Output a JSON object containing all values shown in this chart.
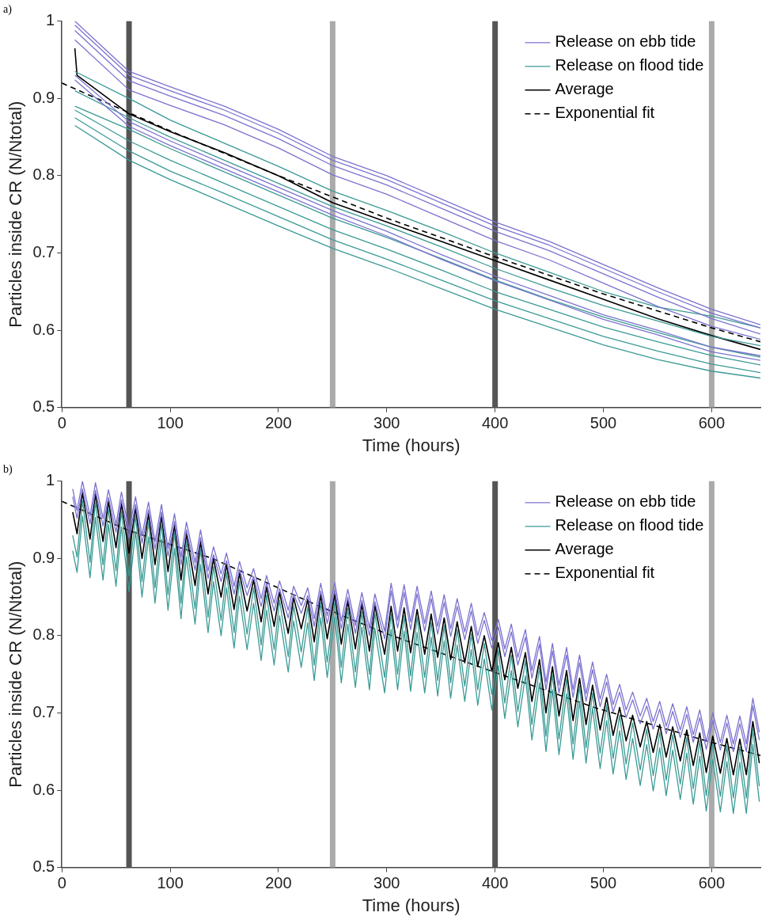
{
  "chart_data": [
    {
      "type": "line",
      "title": "a)",
      "xlabel": "Time (hours)",
      "ylabel": "Particles inside CR (N/Ntotal)",
      "legend": "top right",
      "xlim": [
        0,
        645
      ],
      "xticks": [
        0,
        100,
        200,
        300,
        400,
        500,
        600
      ],
      "ylim": [
        0.5,
        1
      ],
      "yticks": [
        0.5,
        0.6,
        0.7,
        0.8,
        0.9,
        1
      ],
      "x": [
        12,
        62,
        100,
        150,
        200,
        250,
        300,
        350,
        400,
        450,
        500,
        550,
        600,
        645
      ],
      "ref_lines": [
        {
          "axis": "x",
          "value": 62,
          "color": "#555555"
        },
        {
          "axis": "x",
          "value": 250,
          "color": "#aaaaaa"
        },
        {
          "axis": "x",
          "value": 400,
          "color": "#555555"
        },
        {
          "axis": "x",
          "value": 600,
          "color": "#aaaaaa"
        }
      ],
      "series": [
        {
          "name": "Release on ebb tide",
          "color": "#7b72d0",
          "values": [
            1.0,
            0.935,
            0.915,
            0.89,
            0.86,
            0.825,
            0.8,
            0.77,
            0.74,
            0.715,
            0.685,
            0.655,
            0.627,
            0.607
          ]
        },
        {
          "color": "#7b72d0",
          "values": [
            0.995,
            0.93,
            0.91,
            0.885,
            0.855,
            0.82,
            0.795,
            0.765,
            0.735,
            0.71,
            0.68,
            0.65,
            0.622,
            0.603
          ]
        },
        {
          "color": "#7b72d0",
          "values": [
            0.988,
            0.923,
            0.903,
            0.878,
            0.848,
            0.813,
            0.788,
            0.758,
            0.728,
            0.703,
            0.673,
            0.643,
            0.615,
            0.595
          ]
        },
        {
          "color": "#7b72d0",
          "values": [
            0.976,
            0.911,
            0.891,
            0.866,
            0.836,
            0.801,
            0.776,
            0.746,
            0.716,
            0.691,
            0.661,
            0.631,
            0.605,
            0.588
          ]
        },
        {
          "color": "#7b72d0",
          "values": [
            0.93,
            0.87,
            0.845,
            0.815,
            0.785,
            0.755,
            0.728,
            0.698,
            0.67,
            0.645,
            0.62,
            0.6,
            0.578,
            0.567
          ]
        },
        {
          "color": "#7b72d0",
          "values": [
            0.924,
            0.864,
            0.839,
            0.809,
            0.779,
            0.749,
            0.722,
            0.692,
            0.664,
            0.639,
            0.614,
            0.594,
            0.572,
            0.561
          ]
        },
        {
          "name": "Release on flood tide",
          "color": "#3a9a94",
          "values": [
            0.935,
            0.9,
            0.872,
            0.842,
            0.812,
            0.78,
            0.755,
            0.728,
            0.7,
            0.675,
            0.65,
            0.63,
            0.618,
            0.603
          ]
        },
        {
          "color": "#3a9a94",
          "values": [
            0.91,
            0.875,
            0.85,
            0.82,
            0.79,
            0.76,
            0.735,
            0.708,
            0.68,
            0.655,
            0.632,
            0.612,
            0.592,
            0.58
          ]
        },
        {
          "color": "#3a9a94",
          "values": [
            0.89,
            0.86,
            0.835,
            0.805,
            0.775,
            0.745,
            0.72,
            0.693,
            0.665,
            0.64,
            0.617,
            0.597,
            0.578,
            0.565
          ]
        },
        {
          "color": "#3a9a94",
          "values": [
            0.885,
            0.845,
            0.82,
            0.79,
            0.76,
            0.73,
            0.705,
            0.678,
            0.65,
            0.627,
            0.604,
            0.585,
            0.567,
            0.555
          ]
        },
        {
          "color": "#3a9a94",
          "values": [
            0.875,
            0.832,
            0.806,
            0.777,
            0.747,
            0.717,
            0.692,
            0.665,
            0.638,
            0.615,
            0.592,
            0.573,
            0.556,
            0.545
          ]
        },
        {
          "color": "#3a9a94",
          "values": [
            0.865,
            0.82,
            0.795,
            0.765,
            0.735,
            0.706,
            0.681,
            0.654,
            0.627,
            0.604,
            0.581,
            0.562,
            0.547,
            0.538
          ]
        },
        {
          "name": "Average",
          "color": "#000000",
          "x": [
            12,
            14,
            62,
            100,
            150,
            200,
            250,
            300,
            350,
            400,
            450,
            500,
            550,
            600,
            645
          ],
          "values": [
            0.965,
            0.93,
            0.88,
            0.857,
            0.83,
            0.8,
            0.765,
            0.74,
            0.715,
            0.69,
            0.665,
            0.64,
            0.615,
            0.593,
            0.575
          ]
        },
        {
          "name": "Exponential fit",
          "color": "#000000",
          "line_style": "dashed",
          "x": [
            0,
            100,
            200,
            300,
            400,
            500,
            600,
            645
          ],
          "values": [
            0.92,
            0.858,
            0.8,
            0.745,
            0.695,
            0.647,
            0.603,
            0.585
          ]
        }
      ]
    },
    {
      "type": "line",
      "title": "b)",
      "xlabel": "Time (hours)",
      "ylabel": "Particles inside CR (N/Ntotal)",
      "legend": "top right",
      "xlim": [
        0,
        645
      ],
      "xticks": [
        0,
        100,
        200,
        300,
        400,
        500,
        600
      ],
      "ylim": [
        0.5,
        1
      ],
      "yticks": [
        0.5,
        0.6,
        0.7,
        0.8,
        0.9,
        1
      ],
      "x": [
        10,
        14,
        19,
        26,
        31,
        38,
        43,
        50,
        55,
        62,
        68,
        74,
        80,
        86,
        92,
        98,
        104,
        110,
        115,
        123,
        128,
        135,
        140,
        147,
        152,
        159,
        164,
        171,
        177,
        184,
        189,
        196,
        201,
        209,
        214,
        221,
        227,
        233,
        239,
        245,
        252,
        258,
        264,
        271,
        277,
        284,
        289,
        298,
        304,
        310,
        316,
        322,
        328,
        335,
        341,
        347,
        353,
        359,
        365,
        372,
        378,
        384,
        390,
        397,
        403,
        409,
        415,
        421,
        428,
        434,
        441,
        447,
        453,
        459,
        466,
        472,
        478,
        484,
        490,
        497,
        503,
        509,
        515,
        521,
        527,
        534,
        540,
        546,
        552,
        558,
        564,
        571,
        577,
        583,
        589,
        595,
        601,
        608,
        614,
        620,
        626,
        632,
        638,
        644
      ],
      "ref_lines": [
        {
          "axis": "x",
          "value": 62,
          "color": "#555555"
        },
        {
          "axis": "x",
          "value": 250,
          "color": "#aaaaaa"
        },
        {
          "axis": "x",
          "value": 400,
          "color": "#555555"
        },
        {
          "axis": "x",
          "value": 600,
          "color": "#aaaaaa"
        }
      ],
      "series": [
        {
          "name": "Release on ebb tide",
          "color": "#7b72d0",
          "values": [
            0.99,
            0.962,
            1.0,
            0.955,
            0.998,
            0.952,
            0.989,
            0.944,
            0.986,
            0.937,
            0.98,
            0.93,
            0.973,
            0.922,
            0.97,
            0.913,
            0.958,
            0.902,
            0.947,
            0.895,
            0.937,
            0.884,
            0.915,
            0.88,
            0.907,
            0.864,
            0.896,
            0.862,
            0.887,
            0.848,
            0.878,
            0.842,
            0.871,
            0.833,
            0.864,
            0.839,
            0.862,
            0.822,
            0.868,
            0.826,
            0.869,
            0.819,
            0.86,
            0.813,
            0.856,
            0.81,
            0.854,
            0.806,
            0.868,
            0.82,
            0.866,
            0.818,
            0.864,
            0.816,
            0.858,
            0.812,
            0.853,
            0.809,
            0.848,
            0.805,
            0.842,
            0.8,
            0.83,
            0.794,
            0.821,
            0.783,
            0.815,
            0.772,
            0.808,
            0.755,
            0.799,
            0.74,
            0.79,
            0.736,
            0.785,
            0.73,
            0.775,
            0.725,
            0.766,
            0.718,
            0.75,
            0.711,
            0.737,
            0.704,
            0.727,
            0.696,
            0.719,
            0.689,
            0.715,
            0.683,
            0.712,
            0.678,
            0.708,
            0.672,
            0.704,
            0.663,
            0.7,
            0.662,
            0.697,
            0.66,
            0.696,
            0.66,
            0.719,
            0.675
          ]
        },
        {
          "color": "#7b72d0",
          "values": [
            0.98,
            0.952,
            0.99,
            0.945,
            0.988,
            0.942,
            0.979,
            0.934,
            0.976,
            0.927,
            0.97,
            0.92,
            0.963,
            0.912,
            0.96,
            0.903,
            0.948,
            0.892,
            0.937,
            0.885,
            0.927,
            0.874,
            0.905,
            0.87,
            0.897,
            0.854,
            0.886,
            0.852,
            0.877,
            0.838,
            0.868,
            0.832,
            0.861,
            0.823,
            0.854,
            0.829,
            0.852,
            0.812,
            0.858,
            0.816,
            0.859,
            0.809,
            0.85,
            0.803,
            0.846,
            0.8,
            0.844,
            0.796,
            0.858,
            0.81,
            0.856,
            0.808,
            0.854,
            0.806,
            0.848,
            0.802,
            0.843,
            0.799,
            0.838,
            0.795,
            0.832,
            0.79,
            0.82,
            0.784,
            0.811,
            0.773,
            0.805,
            0.762,
            0.798,
            0.745,
            0.789,
            0.73,
            0.78,
            0.726,
            0.775,
            0.72,
            0.765,
            0.715,
            0.756,
            0.708,
            0.74,
            0.701,
            0.727,
            0.694,
            0.717,
            0.686,
            0.709,
            0.679,
            0.705,
            0.673,
            0.702,
            0.668,
            0.698,
            0.662,
            0.694,
            0.653,
            0.69,
            0.652,
            0.687,
            0.65,
            0.686,
            0.65,
            0.709,
            0.665
          ]
        },
        {
          "name": "Release on flood tide",
          "color": "#3a9a94",
          "values": [
            0.93,
            0.902,
            0.975,
            0.895,
            0.973,
            0.892,
            0.964,
            0.884,
            0.961,
            0.877,
            0.955,
            0.87,
            0.948,
            0.862,
            0.945,
            0.853,
            0.933,
            0.842,
            0.922,
            0.835,
            0.912,
            0.824,
            0.89,
            0.82,
            0.882,
            0.804,
            0.871,
            0.802,
            0.862,
            0.788,
            0.853,
            0.782,
            0.846,
            0.773,
            0.839,
            0.779,
            0.837,
            0.762,
            0.843,
            0.766,
            0.844,
            0.759,
            0.835,
            0.753,
            0.831,
            0.75,
            0.829,
            0.746,
            0.828,
            0.75,
            0.826,
            0.748,
            0.824,
            0.746,
            0.818,
            0.742,
            0.813,
            0.739,
            0.808,
            0.735,
            0.802,
            0.73,
            0.79,
            0.724,
            0.781,
            0.713,
            0.775,
            0.702,
            0.768,
            0.685,
            0.759,
            0.67,
            0.75,
            0.666,
            0.745,
            0.66,
            0.735,
            0.655,
            0.726,
            0.648,
            0.71,
            0.641,
            0.697,
            0.634,
            0.687,
            0.626,
            0.679,
            0.619,
            0.675,
            0.613,
            0.672,
            0.608,
            0.668,
            0.602,
            0.664,
            0.593,
            0.66,
            0.592,
            0.657,
            0.59,
            0.656,
            0.59,
            0.679,
            0.605
          ]
        },
        {
          "color": "#3a9a94",
          "values": [
            0.91,
            0.882,
            0.955,
            0.875,
            0.953,
            0.872,
            0.944,
            0.864,
            0.941,
            0.857,
            0.935,
            0.85,
            0.928,
            0.842,
            0.925,
            0.833,
            0.913,
            0.822,
            0.902,
            0.815,
            0.892,
            0.804,
            0.87,
            0.8,
            0.862,
            0.784,
            0.851,
            0.782,
            0.842,
            0.768,
            0.833,
            0.762,
            0.826,
            0.753,
            0.819,
            0.759,
            0.817,
            0.742,
            0.823,
            0.746,
            0.824,
            0.739,
            0.815,
            0.733,
            0.811,
            0.73,
            0.809,
            0.726,
            0.808,
            0.73,
            0.806,
            0.728,
            0.804,
            0.726,
            0.798,
            0.722,
            0.793,
            0.719,
            0.788,
            0.715,
            0.782,
            0.71,
            0.77,
            0.704,
            0.761,
            0.693,
            0.755,
            0.682,
            0.748,
            0.665,
            0.739,
            0.65,
            0.73,
            0.646,
            0.725,
            0.64,
            0.715,
            0.635,
            0.706,
            0.628,
            0.69,
            0.621,
            0.677,
            0.614,
            0.667,
            0.606,
            0.659,
            0.599,
            0.655,
            0.593,
            0.652,
            0.588,
            0.648,
            0.582,
            0.644,
            0.573,
            0.64,
            0.572,
            0.637,
            0.57,
            0.636,
            0.57,
            0.659,
            0.585
          ]
        },
        {
          "name": "Average",
          "color": "#000000",
          "values": [
            0.96,
            0.932,
            0.985,
            0.925,
            0.983,
            0.922,
            0.974,
            0.914,
            0.971,
            0.907,
            0.965,
            0.9,
            0.958,
            0.892,
            0.955,
            0.883,
            0.943,
            0.872,
            0.932,
            0.865,
            0.922,
            0.854,
            0.9,
            0.85,
            0.892,
            0.834,
            0.881,
            0.832,
            0.872,
            0.818,
            0.863,
            0.812,
            0.856,
            0.803,
            0.849,
            0.809,
            0.847,
            0.792,
            0.853,
            0.796,
            0.854,
            0.789,
            0.845,
            0.783,
            0.841,
            0.78,
            0.839,
            0.776,
            0.838,
            0.78,
            0.836,
            0.778,
            0.834,
            0.776,
            0.828,
            0.772,
            0.823,
            0.769,
            0.818,
            0.765,
            0.812,
            0.76,
            0.8,
            0.754,
            0.791,
            0.743,
            0.785,
            0.732,
            0.778,
            0.715,
            0.769,
            0.7,
            0.76,
            0.696,
            0.755,
            0.69,
            0.745,
            0.685,
            0.736,
            0.678,
            0.72,
            0.671,
            0.707,
            0.664,
            0.697,
            0.656,
            0.689,
            0.649,
            0.685,
            0.643,
            0.682,
            0.638,
            0.678,
            0.632,
            0.674,
            0.623,
            0.67,
            0.622,
            0.667,
            0.62,
            0.666,
            0.62,
            0.689,
            0.635
          ]
        },
        {
          "name": "Exponential fit",
          "color": "#000000",
          "line_style": "dashed",
          "x": [
            0,
            62,
            139,
            238,
            301,
            397,
            492,
            597,
            645
          ],
          "values": [
            0.974,
            0.936,
            0.9,
            0.838,
            0.802,
            0.754,
            0.707,
            0.663,
            0.645
          ]
        }
      ]
    }
  ]
}
